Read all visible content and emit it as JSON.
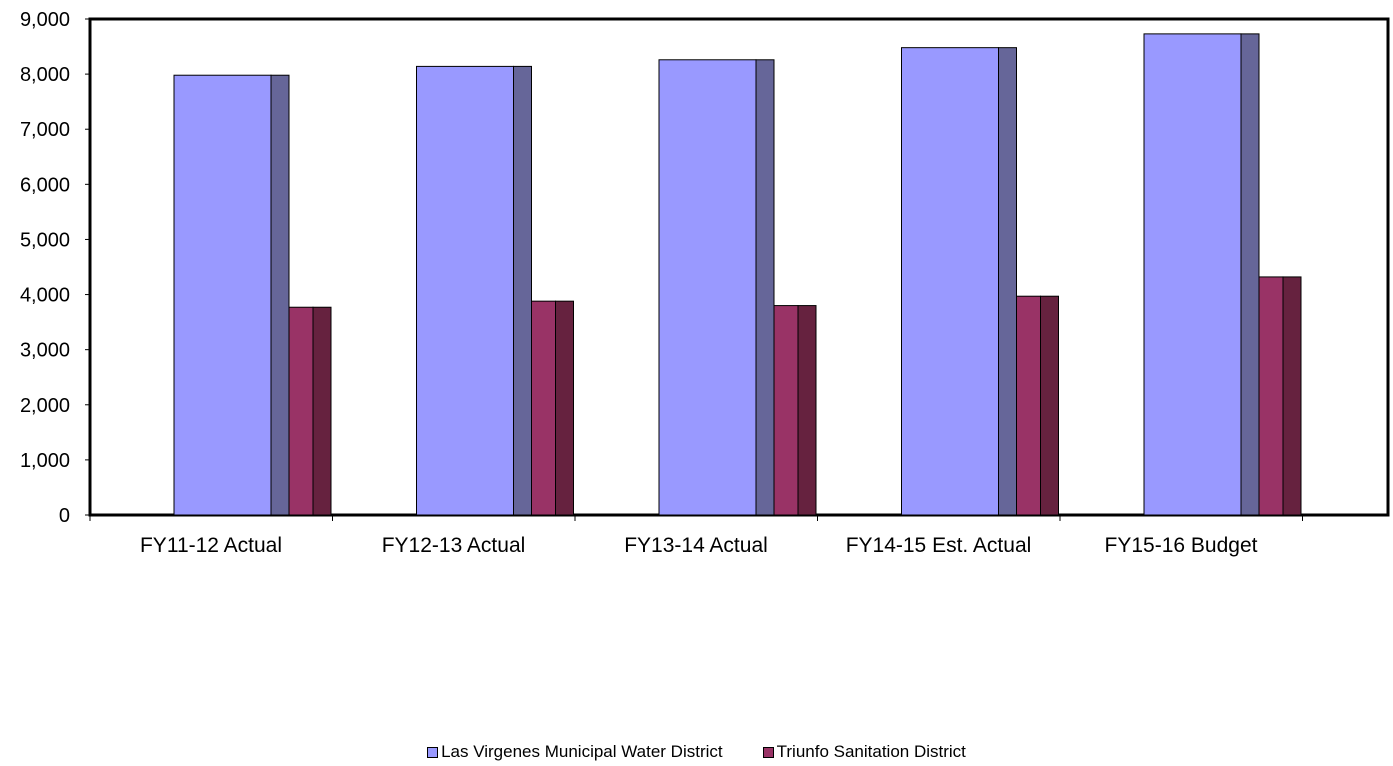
{
  "chart_data": {
    "type": "bar",
    "categories": [
      "FY11-12 Actual",
      "FY12-13 Actual",
      "FY13-14 Actual",
      "FY14-15 Est. Actual",
      "FY15-16 Budget"
    ],
    "series": [
      {
        "name": "Las Virgenes Municipal Water District",
        "values": [
          7980,
          8140,
          8260,
          8480,
          8730
        ],
        "color": "#9999ff",
        "side_color": "#666699"
      },
      {
        "name": "Triunfo Sanitation District",
        "values": [
          3770,
          3880,
          3800,
          3970,
          4320
        ],
        "color": "#993366",
        "side_color": "#66223f"
      }
    ],
    "ylim": [
      0,
      9000
    ],
    "yticks": [
      "0",
      "1,000",
      "2,000",
      "3,000",
      "4,000",
      "5,000",
      "6,000",
      "7,000",
      "8,000",
      "9,000"
    ],
    "ytick_values": [
      0,
      1000,
      2000,
      3000,
      4000,
      5000,
      6000,
      7000,
      8000,
      9000
    ],
    "grid": false,
    "legend_position": "bottom"
  }
}
